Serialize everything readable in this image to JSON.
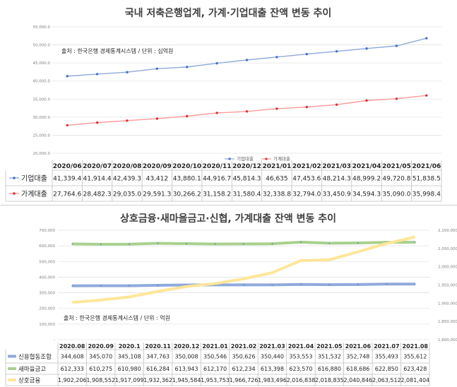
{
  "chart_data": [
    {
      "type": "line",
      "title": "국내 저축은행업계, 가계·기업대출 잔액 변동 추이",
      "source": "출처 : 한국은행 경제통계시스템 / 단위 : 십억원",
      "categories": [
        "2020/06",
        "2020/07",
        "2020/08",
        "2020/09",
        "2020/10",
        "2020/11",
        "2020/12",
        "2021/01",
        "2021/02",
        "2021/03",
        "2021/04",
        "2021/05",
        "2021/06"
      ],
      "y_ticks": [
        "20,000.0",
        "25,000.0",
        "30,000.0",
        "35,000.0",
        "40,000.0",
        "45,000.0",
        "50,000.0",
        "55,000.0"
      ],
      "ylim": [
        20000,
        55000
      ],
      "legend_position": "bottom",
      "series": [
        {
          "name": "기업대출",
          "color": "#8faadc",
          "marker_color": "#4472c4",
          "values": [
            41339.4,
            41914.4,
            42439.3,
            43412,
            43880.1,
            44916.7,
            45814.3,
            46635,
            47453.6,
            48214.3,
            48999.2,
            49720.8,
            51838.5
          ],
          "labels": [
            "41,339.4",
            "41,914.4",
            "42,439.3",
            "43,412",
            "43,880.1",
            "44,916.7",
            "45,814.3",
            "46,635",
            "47,453.6",
            "48,214.3",
            "48,999.2",
            "49,720.8",
            "51,838.5"
          ]
        },
        {
          "name": "가계대출",
          "color": "#ff9999",
          "marker_color": "#e03030",
          "values": [
            27764.6,
            28482.3,
            29035,
            29591.3,
            30266.2,
            31158.2,
            31580.4,
            32338.8,
            32794,
            33450.9,
            34594.3,
            35090,
            35998.4
          ],
          "labels": [
            "27,764.6",
            "28,482.3",
            "29,035.0",
            "29,591.3",
            "30,266.2",
            "31,158.2",
            "31,580.4",
            "32,338.8",
            "32,794.0",
            "33,450.9",
            "34,594.3",
            "35,090.0",
            "35,998.4"
          ]
        }
      ]
    },
    {
      "type": "line",
      "title": "상호금융·새마을금고·신협, 가계대출 잔액 변동 추이",
      "source": "출처 : 한국은행 경제통계시스템 / 단위 : 억원",
      "categories": [
        "2020.08",
        "2020.09",
        "2020.1",
        "2020.11",
        "2020.12",
        "2021.01",
        "2021.02",
        "2021.03",
        "2021.04",
        "2021.05",
        "2021.06",
        "2021.07",
        "2021.08"
      ],
      "y_left_ticks": [
        "-",
        "100,000",
        "200,000",
        "300,000",
        "400,000",
        "500,000",
        "600,000",
        "700,000"
      ],
      "ylim_left": [
        0,
        700000
      ],
      "y_right_ticks": [
        "1,800,000",
        "1,850,000",
        "1,900,000",
        "1,950,000",
        "2,000,000",
        "2,050,000",
        "2,100,000"
      ],
      "ylim_right": [
        1800000,
        2100000
      ],
      "series": [
        {
          "name": "신용협동조합",
          "axis": "left",
          "color": "#8faadc",
          "values": [
            344608,
            345070,
            345108,
            347763,
            350008,
            350546,
            350626,
            350440,
            353553,
            351532,
            352748,
            355493,
            355612
          ],
          "labels": [
            "344,608",
            "345,070",
            "345,108",
            "347,763",
            "350,008",
            "350,546",
            "350,626",
            "350,440",
            "353,553",
            "351,532",
            "352,748",
            "355,493",
            "355,612"
          ]
        },
        {
          "name": "새마을금고",
          "axis": "left",
          "color": "#a9d18e",
          "values": [
            612333,
            610275,
            610980,
            616284,
            613943,
            612170,
            612234,
            613398,
            623570,
            616880,
            618686,
            622850,
            623428
          ],
          "labels": [
            "612,333",
            "610,275",
            "610,980",
            "616,284",
            "613,943",
            "612,170",
            "612,234",
            "613,398",
            "623,570",
            "616,880",
            "618,686",
            "622,850",
            "623,428"
          ]
        },
        {
          "name": "상호금융",
          "axis": "right",
          "color": "#ffe699",
          "values": [
            1902206,
            1908552,
            1917099,
            1932362,
            1945584,
            1953753,
            1966726,
            1983496,
            2016838,
            2018835,
            2040846,
            2063512,
            2081404
          ],
          "labels": [
            "1,902,206",
            "1,908,552",
            "1,917,099",
            "1,932,362",
            "1,945,584",
            "1,953,753",
            "1,966,726",
            "1,983,496",
            "2,016,838",
            "2,018,835",
            "2,040,846",
            "2,063,512",
            "2,081,404"
          ]
        }
      ]
    }
  ]
}
